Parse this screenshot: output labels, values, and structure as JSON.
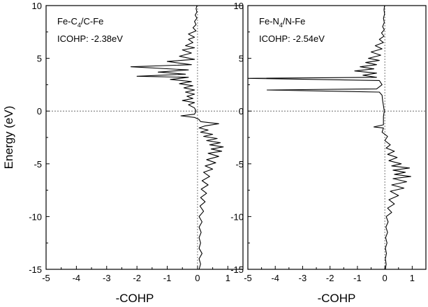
{
  "figure": {
    "ylabel": "Energy (eV)"
  },
  "chart_data": [
    {
      "type": "line",
      "panel": "left",
      "annotation": {
        "line1_main": "Fe-C",
        "line1_sub": "4",
        "line1_rest": "/C-Fe",
        "line2": "ICOHP: -2.38eV"
      },
      "xlabel": "-COHP",
      "xlim": [
        -5,
        1.5
      ],
      "ylim": [
        -15,
        10
      ],
      "xticks": [
        "-5",
        "-4",
        "-3",
        "-2",
        "-1",
        "0",
        "1"
      ],
      "yticks": [
        "10",
        "5",
        "0",
        "-5",
        "-10",
        "-15"
      ],
      "xtick_values": [
        -5,
        -4,
        -3,
        -2,
        -1,
        0,
        1
      ],
      "ytick_values": [
        10,
        5,
        0,
        -5,
        -10,
        -15
      ],
      "reference_lines": {
        "x": 0,
        "y": 0,
        "style": "dashed"
      },
      "series": [
        {
          "points": [
            [
              0.05,
              -15.0
            ],
            [
              0.1,
              -14.5
            ],
            [
              0.05,
              -14.0
            ],
            [
              0.15,
              -13.5
            ],
            [
              0.05,
              -13.0
            ],
            [
              0.1,
              -12.5
            ],
            [
              0.05,
              -12.0
            ],
            [
              0.12,
              -11.5
            ],
            [
              0.05,
              -11.0
            ],
            [
              0.15,
              -10.5
            ],
            [
              0.05,
              -10.0
            ],
            [
              0.2,
              -9.5
            ],
            [
              0.08,
              -9.0
            ],
            [
              0.25,
              -8.6
            ],
            [
              0.1,
              -8.2
            ],
            [
              0.3,
              -7.8
            ],
            [
              0.12,
              -7.4
            ],
            [
              0.35,
              -7.0
            ],
            [
              0.15,
              -6.6
            ],
            [
              0.4,
              -6.2
            ],
            [
              0.2,
              -5.8
            ],
            [
              0.5,
              -5.5
            ],
            [
              0.25,
              -5.2
            ],
            [
              0.6,
              -4.9
            ],
            [
              0.3,
              -4.6
            ],
            [
              0.7,
              -4.3
            ],
            [
              0.35,
              -4.0
            ],
            [
              0.8,
              -3.8
            ],
            [
              0.45,
              -3.6
            ],
            [
              0.85,
              -3.4
            ],
            [
              0.4,
              -3.2
            ],
            [
              0.75,
              -3.0
            ],
            [
              0.3,
              -2.8
            ],
            [
              0.65,
              -2.6
            ],
            [
              0.2,
              -2.4
            ],
            [
              0.5,
              -2.2
            ],
            [
              0.1,
              -2.0
            ],
            [
              0.35,
              -1.8
            ],
            [
              0.05,
              -1.6
            ],
            [
              0.25,
              -1.4
            ],
            [
              0.7,
              -1.2
            ],
            [
              0.1,
              -1.0
            ],
            [
              0.05,
              -0.8
            ],
            [
              -0.1,
              -0.6
            ],
            [
              -0.55,
              -0.45
            ],
            [
              -0.1,
              -0.3
            ],
            [
              -0.05,
              0.0
            ],
            [
              -0.1,
              0.3
            ],
            [
              -0.3,
              0.6
            ],
            [
              -0.1,
              0.8
            ],
            [
              -0.5,
              1.0
            ],
            [
              -0.15,
              1.2
            ],
            [
              -0.35,
              1.4
            ],
            [
              -0.1,
              1.6
            ],
            [
              -0.4,
              1.8
            ],
            [
              -0.1,
              2.0
            ],
            [
              -0.45,
              2.2
            ],
            [
              -0.15,
              2.4
            ],
            [
              -0.6,
              2.6
            ],
            [
              -0.2,
              2.8
            ],
            [
              -0.9,
              3.0
            ],
            [
              -0.3,
              3.2
            ],
            [
              -2.0,
              3.3
            ],
            [
              -0.4,
              3.5
            ],
            [
              -1.3,
              3.7
            ],
            [
              -0.3,
              3.9
            ],
            [
              -2.2,
              4.2
            ],
            [
              -0.2,
              4.4
            ],
            [
              -1.0,
              4.7
            ],
            [
              -0.1,
              4.9
            ],
            [
              -0.6,
              5.2
            ],
            [
              -0.2,
              5.5
            ],
            [
              -0.5,
              5.8
            ],
            [
              -0.1,
              6.0
            ],
            [
              -0.4,
              6.2
            ],
            [
              -0.15,
              6.5
            ],
            [
              -0.3,
              6.8
            ],
            [
              -0.1,
              7.0
            ],
            [
              -0.3,
              7.3
            ],
            [
              -0.05,
              7.6
            ],
            [
              -0.15,
              7.9
            ],
            [
              -0.05,
              8.2
            ],
            [
              -0.1,
              8.5
            ],
            [
              -0.02,
              8.8
            ],
            [
              -0.08,
              9.1
            ],
            [
              -0.02,
              9.4
            ],
            [
              -0.05,
              9.7
            ],
            [
              -0.02,
              10.0
            ]
          ]
        }
      ]
    },
    {
      "type": "line",
      "panel": "right",
      "annotation": {
        "line1_main": "Fe-N",
        "line1_sub": "4",
        "line1_rest": "/N-Fe",
        "line2": "ICOHP: -2.54eV"
      },
      "xlabel": "-COHP",
      "xlim": [
        -5,
        1.5
      ],
      "ylim": [
        -15,
        10
      ],
      "xticks": [
        "-5",
        "-4",
        "-3",
        "-2",
        "-1",
        "0",
        "1"
      ],
      "yticks": [
        "10",
        "5",
        "0",
        "-5",
        "-10",
        "-15"
      ],
      "xtick_values": [
        -5,
        -4,
        -3,
        -2,
        -1,
        0,
        1
      ],
      "ytick_values": [
        10,
        5,
        0,
        -5,
        -10,
        -15
      ],
      "reference_lines": {
        "x": 0,
        "y": 0,
        "style": "dashed"
      },
      "series": [
        {
          "points": [
            [
              0.02,
              -15.0
            ],
            [
              0.05,
              -14.5
            ],
            [
              0.02,
              -14.0
            ],
            [
              0.06,
              -13.5
            ],
            [
              0.02,
              -13.0
            ],
            [
              0.08,
              -12.5
            ],
            [
              0.03,
              -12.0
            ],
            [
              0.1,
              -11.5
            ],
            [
              0.04,
              -11.0
            ],
            [
              0.12,
              -10.5
            ],
            [
              0.05,
              -10.0
            ],
            [
              0.25,
              -9.6
            ],
            [
              0.1,
              -9.2
            ],
            [
              0.35,
              -8.8
            ],
            [
              0.15,
              -8.4
            ],
            [
              0.5,
              -8.0
            ],
            [
              0.2,
              -7.6
            ],
            [
              0.7,
              -7.3
            ],
            [
              0.25,
              -7.0
            ],
            [
              0.8,
              -6.7
            ],
            [
              0.3,
              -6.4
            ],
            [
              0.95,
              -6.2
            ],
            [
              0.35,
              -6.0
            ],
            [
              0.75,
              -5.8
            ],
            [
              0.3,
              -5.6
            ],
            [
              0.9,
              -5.4
            ],
            [
              0.25,
              -5.2
            ],
            [
              0.6,
              -5.0
            ],
            [
              0.15,
              -4.7
            ],
            [
              0.45,
              -4.4
            ],
            [
              0.1,
              -4.1
            ],
            [
              0.35,
              -3.8
            ],
            [
              0.05,
              -3.5
            ],
            [
              0.2,
              -3.2
            ],
            [
              0.0,
              -2.8
            ],
            [
              0.1,
              -2.4
            ],
            [
              -0.1,
              -2.0
            ],
            [
              -0.05,
              -1.6
            ],
            [
              -0.4,
              -1.5
            ],
            [
              -0.05,
              -1.3
            ],
            [
              -0.05,
              -0.5
            ],
            [
              -0.02,
              0.0
            ],
            [
              -0.05,
              0.5
            ],
            [
              -0.08,
              1.0
            ],
            [
              -0.1,
              1.5
            ],
            [
              -0.2,
              1.8
            ],
            [
              -4.3,
              2.0
            ],
            [
              -0.3,
              2.1
            ],
            [
              -0.1,
              2.5
            ],
            [
              -0.2,
              2.9
            ],
            [
              -5.0,
              3.1
            ],
            [
              -0.3,
              3.2
            ],
            [
              -0.8,
              3.4
            ],
            [
              -0.3,
              3.6
            ],
            [
              -1.1,
              3.8
            ],
            [
              -0.4,
              4.0
            ],
            [
              -0.9,
              4.2
            ],
            [
              -0.3,
              4.4
            ],
            [
              -0.7,
              4.6
            ],
            [
              -0.2,
              4.8
            ],
            [
              -0.6,
              5.0
            ],
            [
              -0.15,
              5.3
            ],
            [
              -0.5,
              5.6
            ],
            [
              -0.1,
              5.9
            ],
            [
              -0.35,
              6.2
            ],
            [
              -0.05,
              6.5
            ],
            [
              -0.2,
              6.8
            ],
            [
              -0.03,
              7.1
            ],
            [
              -0.12,
              7.4
            ],
            [
              -0.02,
              7.7
            ],
            [
              -0.08,
              8.0
            ],
            [
              -0.02,
              8.4
            ],
            [
              -0.05,
              8.8
            ],
            [
              -0.01,
              9.2
            ],
            [
              -0.03,
              9.6
            ],
            [
              -0.01,
              10.0
            ]
          ]
        }
      ]
    }
  ]
}
